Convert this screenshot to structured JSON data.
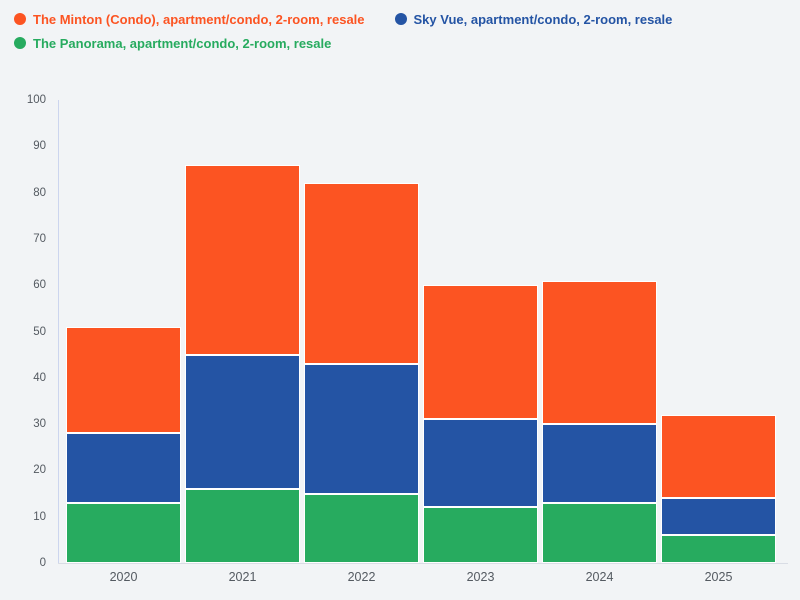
{
  "page": {
    "background_color": "#f2f4f6"
  },
  "legend": {
    "position": "top-left",
    "items": [
      {
        "key": "minton",
        "label": "The Minton (Condo), apartment/condo, 2-room, resale",
        "color": "#fc5422"
      },
      {
        "key": "skyvue",
        "label": "Sky Vue, apartment/condo, 2-room, resale",
        "color": "#2454a4"
      },
      {
        "key": "panorama",
        "label": "The Panorama, apartment/condo, 2-room, resale",
        "color": "#27ab5f"
      }
    ]
  },
  "chart_data": {
    "type": "bar",
    "stacked": true,
    "title": "",
    "xlabel": "",
    "ylabel": "",
    "grid": false,
    "legend_position": "top-left",
    "categories": [
      "2020",
      "2021",
      "2022",
      "2023",
      "2024",
      "2025"
    ],
    "series": [
      {
        "key": "minton",
        "name": "The Minton (Condo), apartment/condo, 2-room, resale",
        "color": "#fc5422",
        "values": [
          23,
          41,
          39,
          29,
          31,
          18
        ]
      },
      {
        "key": "skyvue",
        "name": "Sky Vue, apartment/condo, 2-room, resale",
        "color": "#2454a4",
        "values": [
          15,
          29,
          28,
          19,
          17,
          8
        ]
      },
      {
        "key": "panorama",
        "name": "The Panorama, apartment/condo, 2-room, resale",
        "color": "#27ab5f",
        "values": [
          13,
          16,
          15,
          12,
          13,
          6
        ]
      }
    ],
    "stack_order_bottom_to_top": [
      "panorama",
      "skyvue",
      "minton"
    ],
    "stack_totals": [
      51,
      86,
      82,
      60,
      61,
      32
    ],
    "cumulative_tops": {
      "2020": {
        "panorama": 13,
        "skyvue": 28,
        "minton": 51
      },
      "2021": {
        "panorama": 16,
        "skyvue": 45,
        "minton": 86
      },
      "2022": {
        "panorama": 15,
        "skyvue": 43,
        "minton": 82
      },
      "2023": {
        "panorama": 12,
        "skyvue": 31,
        "minton": 60
      },
      "2024": {
        "panorama": 13,
        "skyvue": 30,
        "minton": 61
      },
      "2025": {
        "panorama": 6,
        "skyvue": 14,
        "minton": 32
      }
    },
    "yaxis": {
      "min": 0,
      "max": 100,
      "tick_step": 10,
      "ticks": [
        "0",
        "10",
        "20",
        "30",
        "40",
        "50",
        "60",
        "70",
        "80",
        "90",
        "100"
      ]
    }
  }
}
